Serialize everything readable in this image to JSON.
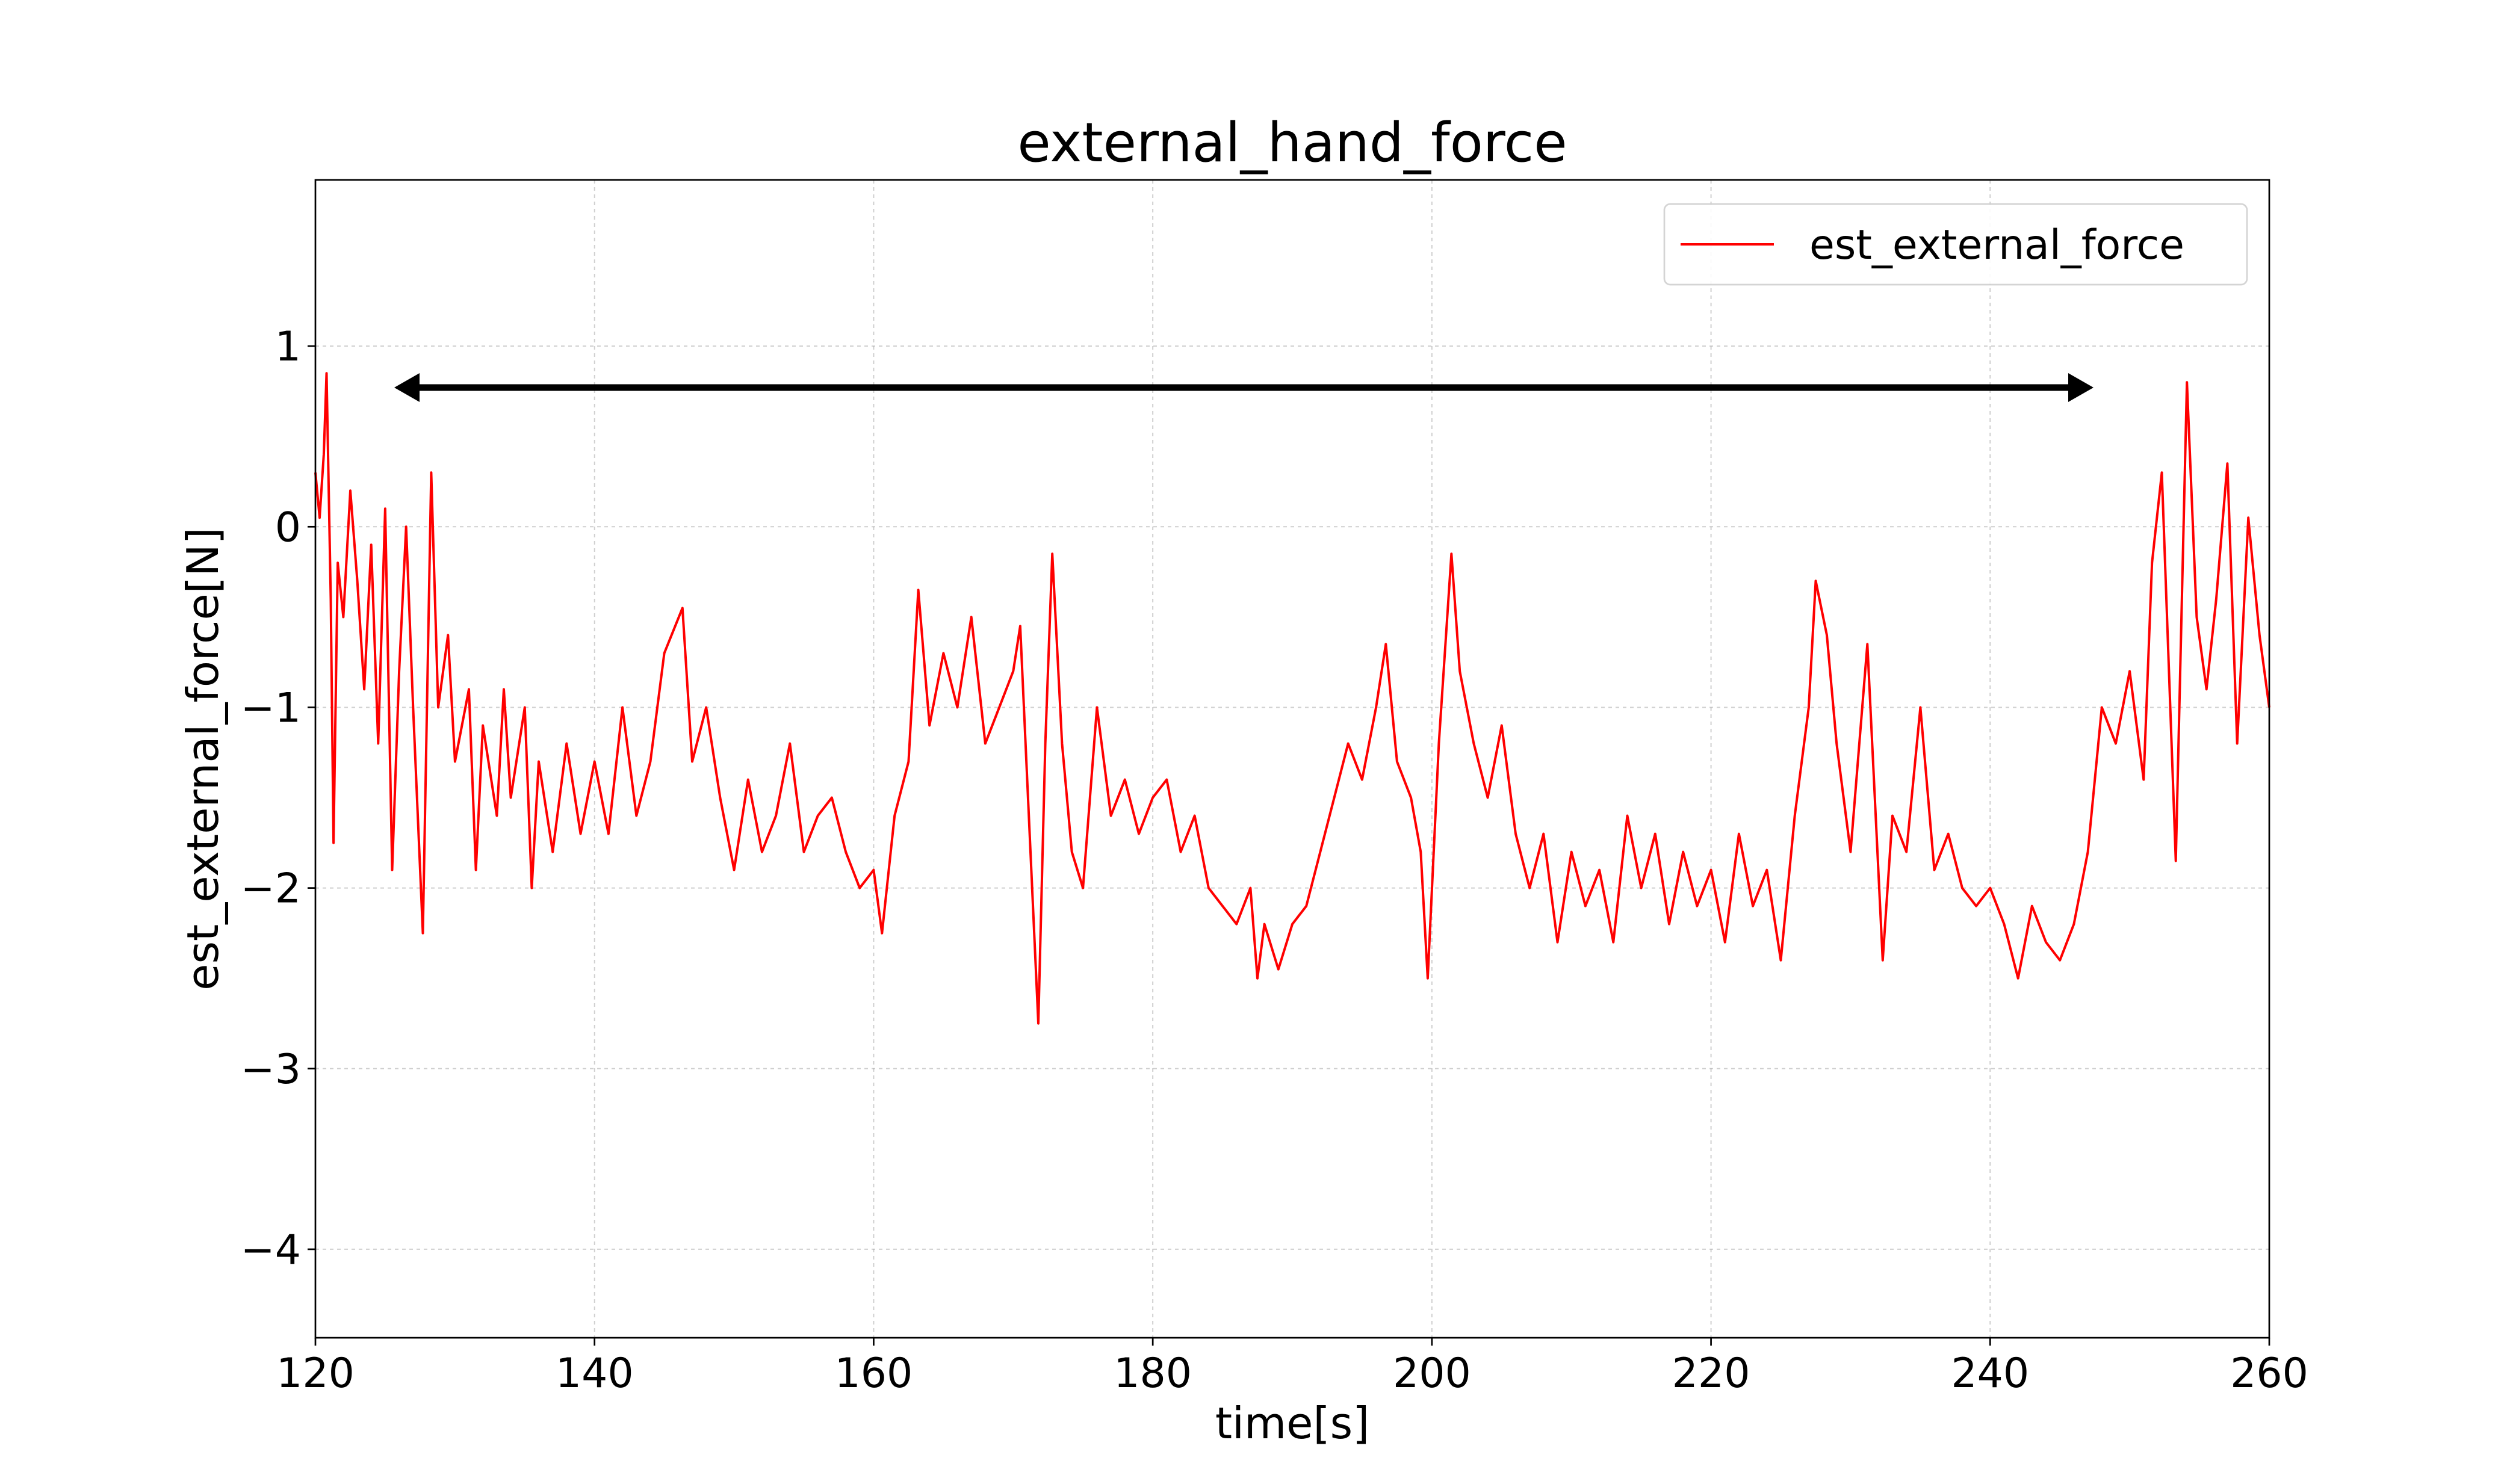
{
  "chart_data": {
    "type": "line",
    "title": "external_hand_force",
    "xlabel": "time[s]",
    "ylabel": "est_external_force[N]",
    "x": [
      120,
      120.3,
      120.6,
      120.8,
      121.1,
      121.3,
      121.6,
      122,
      122.5,
      123,
      123.5,
      124,
      124.5,
      125,
      125.5,
      126,
      126.5,
      127,
      127.7,
      128.3,
      128.8,
      129.5,
      130,
      131,
      131.5,
      132,
      133,
      133.5,
      134,
      135,
      135.5,
      136,
      137,
      138,
      139,
      140,
      141,
      142,
      143,
      144,
      145,
      146.3,
      147,
      148,
      149,
      150,
      151,
      152,
      153,
      154,
      155,
      156,
      157,
      158,
      159,
      160,
      160.6,
      161.5,
      162.5,
      163.2,
      164,
      165,
      166,
      167,
      168,
      169,
      170,
      170.5,
      171,
      171.8,
      172.3,
      172.8,
      173.5,
      174.2,
      175,
      176,
      177,
      178,
      179,
      180,
      181,
      182,
      183,
      184,
      185,
      186,
      187,
      187.5,
      188,
      189,
      190,
      191,
      192,
      193,
      194,
      195,
      196,
      196.7,
      197.5,
      198.5,
      199.2,
      199.7,
      200.5,
      201.4,
      202,
      203,
      204,
      205,
      206,
      207,
      208,
      209,
      210,
      211,
      212,
      213,
      214,
      215,
      216,
      217,
      218,
      219,
      220,
      221,
      222,
      223,
      224,
      225,
      226,
      227,
      227.5,
      228.3,
      229,
      230,
      231.2,
      232.3,
      233,
      234,
      235,
      236,
      237,
      238,
      239,
      240,
      241,
      242,
      243,
      244,
      245,
      246,
      247,
      248,
      249,
      250,
      251,
      251.6,
      252.3,
      253.3,
      254.1,
      254.8,
      255.5,
      256.2,
      257,
      257.7,
      258.5,
      259.3,
      260
    ],
    "series": [
      {
        "name": "est_external_force",
        "color": "#ff0000",
        "values": [
          0.3,
          0.05,
          0.4,
          0.85,
          -0.4,
          -1.75,
          -0.2,
          -0.5,
          0.2,
          -0.3,
          -0.9,
          -0.1,
          -1.2,
          0.1,
          -1.9,
          -0.8,
          0.0,
          -1.0,
          -2.25,
          0.3,
          -1.0,
          -0.6,
          -1.3,
          -0.9,
          -1.9,
          -1.1,
          -1.6,
          -0.9,
          -1.5,
          -1.0,
          -2.0,
          -1.3,
          -1.8,
          -1.2,
          -1.7,
          -1.3,
          -1.7,
          -1.0,
          -1.6,
          -1.3,
          -0.7,
          -0.45,
          -1.3,
          -1.0,
          -1.5,
          -1.9,
          -1.4,
          -1.8,
          -1.6,
          -1.2,
          -1.8,
          -1.6,
          -1.5,
          -1.8,
          -2.0,
          -1.9,
          -2.25,
          -1.6,
          -1.3,
          -0.35,
          -1.1,
          -0.7,
          -1.0,
          -0.5,
          -1.2,
          -1.0,
          -0.8,
          -0.55,
          -1.4,
          -2.75,
          -1.2,
          -0.15,
          -1.2,
          -1.8,
          -2.0,
          -1.0,
          -1.6,
          -1.4,
          -1.7,
          -1.5,
          -1.4,
          -1.8,
          -1.6,
          -2.0,
          -2.1,
          -2.2,
          -2.0,
          -2.5,
          -2.2,
          -2.45,
          -2.2,
          -2.1,
          -1.8,
          -1.5,
          -1.2,
          -1.4,
          -1.0,
          -0.65,
          -1.3,
          -1.5,
          -1.8,
          -2.5,
          -1.2,
          -0.15,
          -0.8,
          -1.2,
          -1.5,
          -1.1,
          -1.7,
          -2.0,
          -1.7,
          -2.3,
          -1.8,
          -2.1,
          -1.9,
          -2.3,
          -1.6,
          -2.0,
          -1.7,
          -2.2,
          -1.8,
          -2.1,
          -1.9,
          -2.3,
          -1.7,
          -2.1,
          -1.9,
          -2.4,
          -1.6,
          -1.0,
          -0.3,
          -0.6,
          -1.2,
          -1.8,
          -0.65,
          -2.4,
          -1.6,
          -1.8,
          -1.0,
          -1.9,
          -1.7,
          -2.0,
          -2.1,
          -2.0,
          -2.2,
          -2.5,
          -2.1,
          -2.3,
          -2.4,
          -2.2,
          -1.8,
          -1.0,
          -1.2,
          -0.8,
          -1.4,
          -0.2,
          0.3,
          -1.85,
          0.8,
          -0.5,
          -0.9,
          -0.4,
          0.35,
          -1.2,
          0.05,
          -0.6,
          -1.0
        ]
      }
    ],
    "xlim": [
      120,
      260
    ],
    "xticks": [
      120,
      140,
      160,
      180,
      200,
      220,
      240,
      260
    ],
    "ylim": [
      -4.49,
      1.92
    ],
    "yticks": [
      {
        "value": -4,
        "label": "−4"
      },
      {
        "value": -3,
        "label": "−3"
      },
      {
        "value": -2,
        "label": "−2"
      },
      {
        "value": -1,
        "label": "−1"
      },
      0,
      1
    ],
    "grid": true,
    "legend": "upper right"
  }
}
